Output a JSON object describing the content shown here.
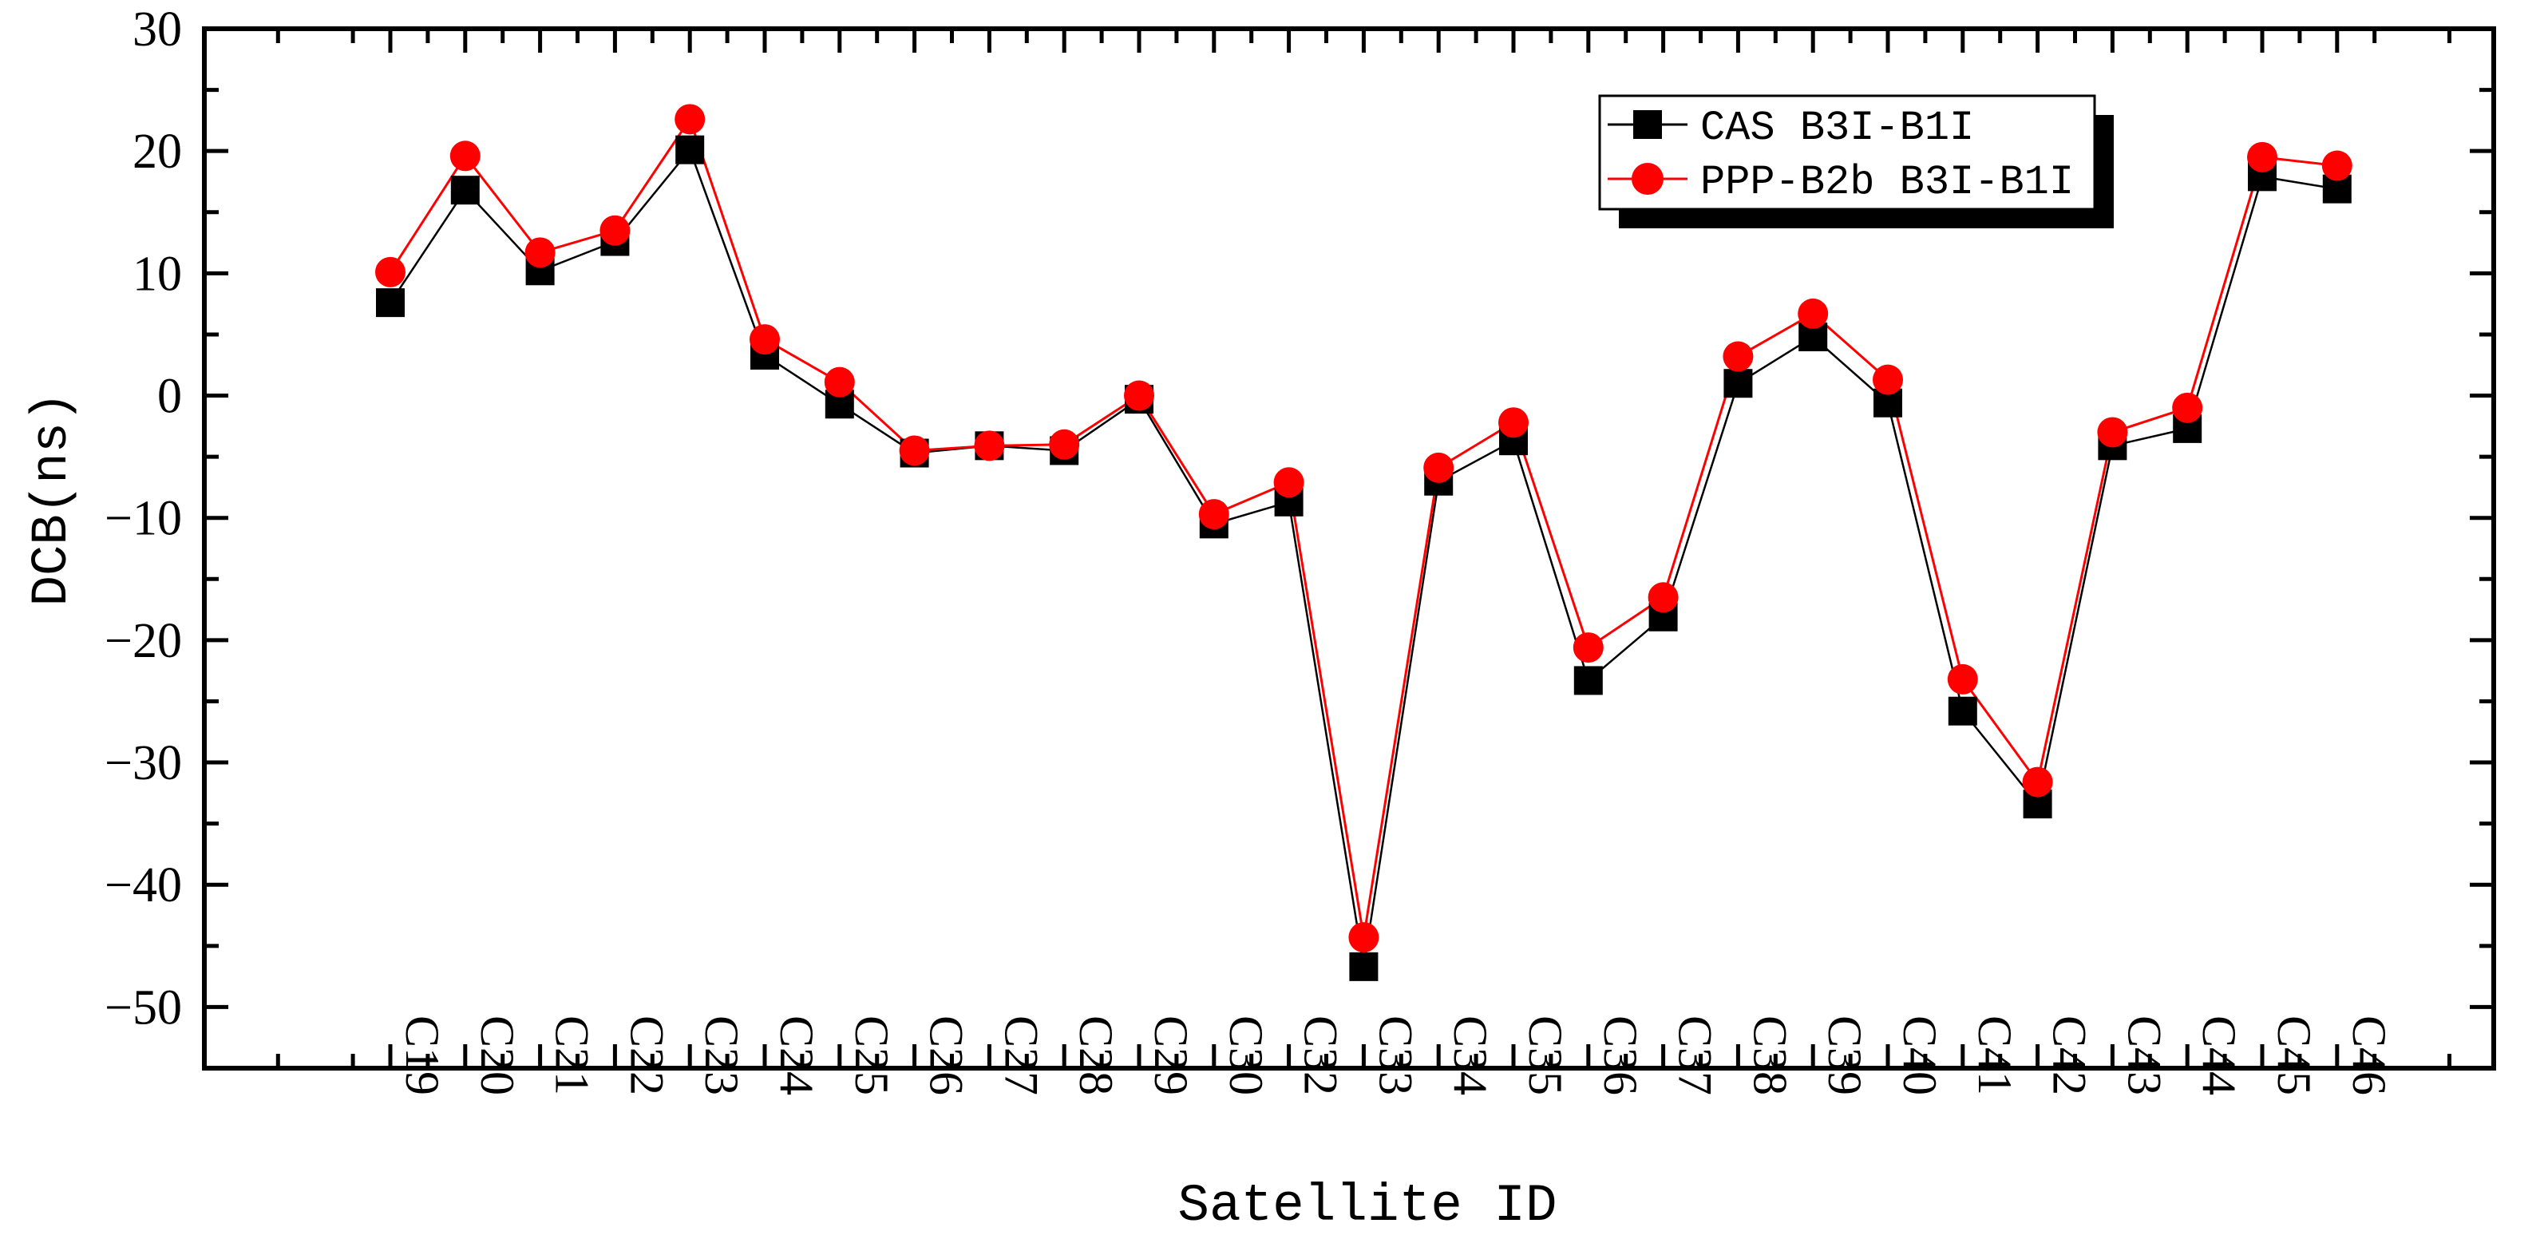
{
  "chart_data": {
    "type": "line",
    "title": "",
    "xlabel": "Satellite ID",
    "ylabel": "DCB(ns)",
    "ylim": [
      -55,
      30
    ],
    "yticks": [
      30,
      20,
      10,
      0,
      -10,
      -20,
      -30,
      -40,
      -50
    ],
    "ytick_labels": [
      "30",
      "20",
      "10",
      "0",
      "−10",
      "−20",
      "−30",
      "−40",
      "−50"
    ],
    "categories": [
      "C19",
      "C20",
      "C21",
      "C22",
      "C23",
      "C24",
      "C25",
      "C26",
      "C27",
      "C28",
      "C29",
      "C30",
      "C32",
      "C33",
      "C34",
      "C35",
      "C36",
      "C37",
      "C38",
      "C39",
      "C40",
      "C41",
      "C42",
      "C43",
      "C44",
      "C45",
      "C46"
    ],
    "grid": false,
    "legend_position": "top-right",
    "series": [
      {
        "name": "CAS B3I-B1I",
        "color": "#000000",
        "marker": "square",
        "values": [
          7.6,
          16.8,
          10.2,
          12.6,
          20.1,
          3.3,
          -0.7,
          -4.7,
          -4.1,
          -4.5,
          -0.3,
          -10.5,
          -8.7,
          -46.7,
          -7.0,
          -3.7,
          -23.3,
          -18.1,
          1.0,
          4.8,
          -0.6,
          -25.8,
          -33.4,
          -4.1,
          -2.7,
          17.9,
          16.9
        ]
      },
      {
        "name": "PPP-B2b B3I-B1I",
        "color": "#ff0000",
        "marker": "circle",
        "values": [
          10.1,
          19.6,
          11.7,
          13.5,
          22.6,
          4.6,
          1.1,
          -4.5,
          -4.1,
          -4.0,
          0.0,
          -9.7,
          -7.1,
          -44.3,
          -5.9,
          -2.2,
          -20.6,
          -16.5,
          3.2,
          6.7,
          1.3,
          -23.2,
          -31.6,
          -3.0,
          -1.0,
          19.5,
          18.8
        ]
      }
    ]
  }
}
